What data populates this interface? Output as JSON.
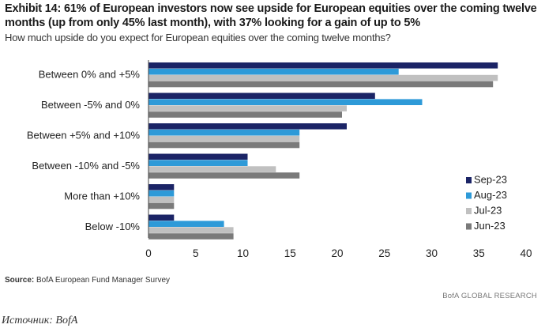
{
  "header": {
    "title": "Exhibit 14: 61% of European investors now see upside for European equities over the coming twelve months (up from only 45% last month), with 37% looking for a gain of up to 5%",
    "subtitle": "How much upside do you expect for European equities over the coming twelve months?"
  },
  "footer": {
    "source_label": "Source:",
    "source_text": "BofA European Fund Manager Survey",
    "credit": "BofA GLOBAL RESEARCH",
    "caption": "Источник: BofA"
  },
  "chart_data": {
    "type": "bar",
    "orientation": "horizontal",
    "title": "",
    "xlabel": "",
    "ylabel": "",
    "categories": [
      "Between 0% and +5%",
      "Between -5% and 0%",
      "Between +5% and +10%",
      "Between -10% and -5%",
      "More than +10%",
      "Below -10%"
    ],
    "series": [
      {
        "name": "Sep-23",
        "color": "#1b2466",
        "values": [
          37,
          24,
          21,
          10.5,
          2.7,
          2.7
        ]
      },
      {
        "name": "Aug-23",
        "color": "#2e9ad8",
        "values": [
          26.5,
          29,
          16,
          10.5,
          2.7,
          8
        ]
      },
      {
        "name": "Jul-23",
        "color": "#c0c0c0",
        "values": [
          37,
          21,
          16,
          13.5,
          2.7,
          9
        ]
      },
      {
        "name": "Jun-23",
        "color": "#7a7a7a",
        "values": [
          36.5,
          20.5,
          16,
          16,
          2.7,
          9
        ]
      }
    ],
    "xlim": [
      0,
      40
    ],
    "xticks": [
      0,
      5,
      10,
      15,
      20,
      25,
      30,
      35,
      40
    ],
    "grid": false,
    "legend_position": "right"
  }
}
